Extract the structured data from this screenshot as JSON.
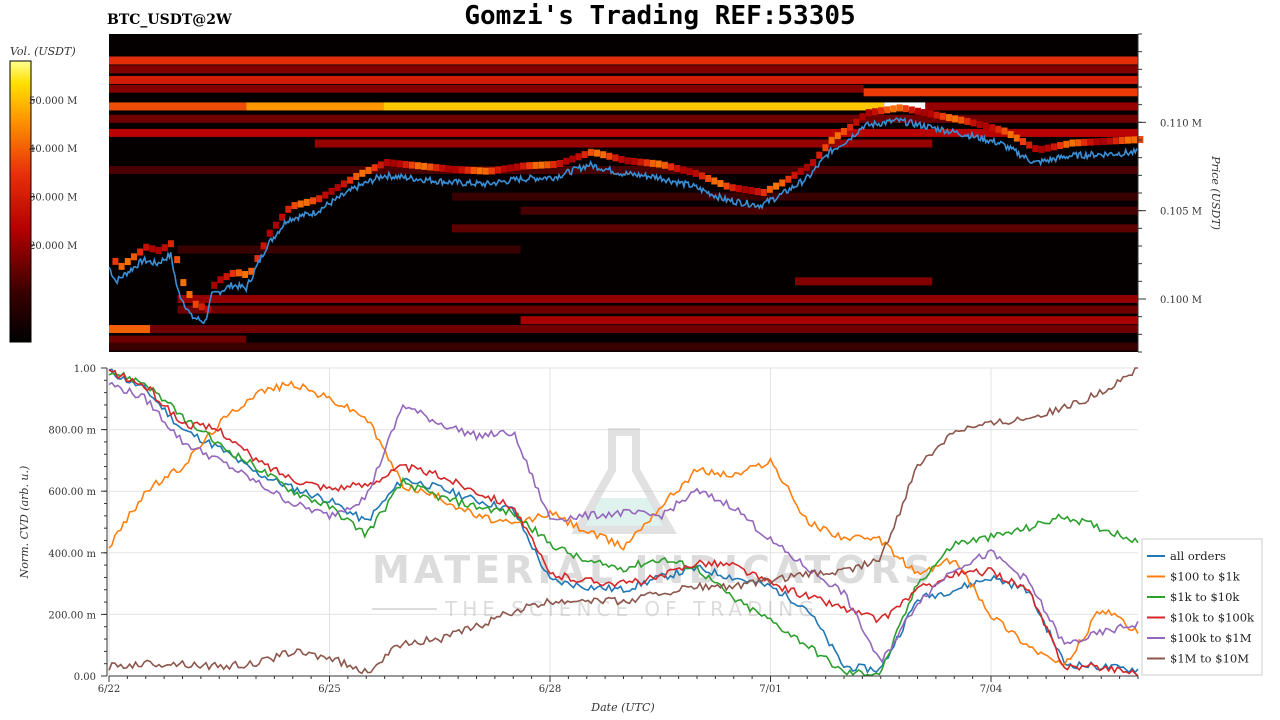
{
  "header": {
    "title": "Gomzi's Trading REF:53305",
    "ticker": "BTC_USDT@2W"
  },
  "colorbar": {
    "label": "Vol. (USDT)",
    "ticks": [
      "50.000 M",
      "40.000 M",
      "30.000 M",
      "20.000 M"
    ]
  },
  "watermark": {
    "line1": "MATERIAL INDICATORS",
    "line2": "THE SCIENCE OF TRADING"
  },
  "chart_data": [
    {
      "type": "heatmap",
      "title": "BTC_USDT@2W",
      "ylabel": "Price (USDT)",
      "ytick_labels": [
        "0.110 M",
        "0.105 M",
        "0.100 M"
      ],
      "price_ticks": [
        110000,
        105000,
        100000
      ],
      "ylim": [
        97000,
        115000
      ],
      "colorbar_ticks": [
        50,
        40,
        30,
        20
      ],
      "colorbar_max": 58,
      "price_series": {
        "name": "price",
        "t": [
          0,
          0.1,
          0.5,
          0.7,
          0.9,
          1.0,
          1.2,
          1.4,
          1.5,
          1.8,
          2.0,
          2.3,
          2.6,
          3.0,
          3.3,
          3.6,
          4.0,
          4.5,
          5.0,
          5.5,
          6.0,
          6.5,
          7.0,
          7.5,
          8.0,
          8.5,
          9.0,
          9.5,
          9.8,
          10.2,
          10.5,
          10.8,
          11.0,
          11.5,
          12.0,
          12.5,
          13.0,
          13.5,
          14.0,
          14.5,
          15.0
        ],
        "price": [
          101800,
          101000,
          102200,
          102000,
          102500,
          100500,
          99000,
          98700,
          100200,
          100800,
          100600,
          103000,
          104500,
          104900,
          105600,
          106300,
          107000,
          106800,
          106600,
          106500,
          106800,
          106900,
          107600,
          107100,
          106900,
          106400,
          105600,
          105300,
          105900,
          106900,
          108300,
          109100,
          109800,
          110100,
          109700,
          109300,
          108800,
          107700,
          108100,
          108200,
          108300
        ]
      },
      "level_rows": [
        {
          "price": 113500,
          "start": 0,
          "end": 15,
          "intensity": 34
        },
        {
          "price": 113000,
          "start": 0,
          "end": 15,
          "intensity": 18
        },
        {
          "price": 112400,
          "start": 0,
          "end": 15,
          "intensity": 30
        },
        {
          "price": 111900,
          "start": 0,
          "end": 11,
          "intensity": 18
        },
        {
          "price": 111700,
          "start": 11,
          "end": 15,
          "intensity": 36
        },
        {
          "price": 110900,
          "start": 0,
          "end": 2,
          "intensity": 38
        },
        {
          "price": 110900,
          "start": 2,
          "end": 4,
          "intensity": 46
        },
        {
          "price": 110900,
          "start": 4,
          "end": 11.3,
          "intensity": 51
        },
        {
          "price": 110900,
          "start": 11.3,
          "end": 11.9,
          "intensity": 58
        },
        {
          "price": 110900,
          "start": 11.9,
          "end": 15,
          "intensity": 20
        },
        {
          "price": 110200,
          "start": 0,
          "end": 15,
          "intensity": 16
        },
        {
          "price": 109400,
          "start": 0,
          "end": 15,
          "intensity": 24
        },
        {
          "price": 108800,
          "start": 3,
          "end": 12,
          "intensity": 20
        },
        {
          "price": 107300,
          "start": 0,
          "end": 15,
          "intensity": 12
        },
        {
          "price": 105800,
          "start": 5,
          "end": 15,
          "intensity": 10
        },
        {
          "price": 105000,
          "start": 6,
          "end": 15,
          "intensity": 12
        },
        {
          "price": 104000,
          "start": 5,
          "end": 15,
          "intensity": 14
        },
        {
          "price": 102800,
          "start": 1,
          "end": 6,
          "intensity": 10
        },
        {
          "price": 101000,
          "start": 10,
          "end": 12,
          "intensity": 18
        },
        {
          "price": 100000,
          "start": 1,
          "end": 15,
          "intensity": 20
        },
        {
          "price": 99400,
          "start": 1,
          "end": 15,
          "intensity": 16
        },
        {
          "price": 98800,
          "start": 6,
          "end": 15,
          "intensity": 22
        },
        {
          "price": 98300,
          "start": 0,
          "end": 0.6,
          "intensity": 40
        },
        {
          "price": 98300,
          "start": 0.6,
          "end": 15,
          "intensity": 16
        },
        {
          "price": 97700,
          "start": 0,
          "end": 2,
          "intensity": 16
        },
        {
          "price": 97300,
          "start": 0,
          "end": 15,
          "intensity": 10
        }
      ]
    },
    {
      "type": "line",
      "xlabel": "Date (UTC)",
      "ylabel": "Norm. CVD (arb. u.)",
      "x_ticks": [
        "6/22",
        "6/25",
        "6/28",
        "7/01",
        "7/04"
      ],
      "x_tick_positions": [
        0,
        3,
        6,
        9,
        12
      ],
      "y_ticks": [
        "0.00",
        "200.00 m",
        "400.00 m",
        "600.00 m",
        "800.00 m",
        "1.00"
      ],
      "y_tick_values": [
        0,
        0.2,
        0.4,
        0.6,
        0.8,
        1.0
      ],
      "xlim": [
        0,
        14
      ],
      "ylim": [
        0,
        1
      ],
      "x": [
        0,
        0.5,
        1,
        1.5,
        2,
        2.5,
        3,
        3.5,
        4,
        4.5,
        5,
        5.5,
        6,
        6.5,
        7,
        7.5,
        8,
        8.5,
        9,
        9.5,
        10,
        10.5,
        11,
        11.5,
        12,
        12.5,
        13,
        13.5,
        14
      ],
      "series": [
        {
          "name": "all orders",
          "color": "#1f77b4",
          "values": [
            0.99,
            0.93,
            0.8,
            0.74,
            0.66,
            0.61,
            0.57,
            0.5,
            0.64,
            0.61,
            0.57,
            0.54,
            0.31,
            0.29,
            0.28,
            0.32,
            0.35,
            0.32,
            0.29,
            0.22,
            0.03,
            0.02,
            0.25,
            0.28,
            0.32,
            0.28,
            0.04,
            0.03,
            0.02
          ]
        },
        {
          "name": "$100 to $1k",
          "color": "#ff7f0e",
          "values": [
            0.42,
            0.6,
            0.68,
            0.82,
            0.92,
            0.95,
            0.9,
            0.84,
            0.62,
            0.58,
            0.52,
            0.49,
            0.53,
            0.47,
            0.42,
            0.55,
            0.67,
            0.65,
            0.7,
            0.5,
            0.45,
            0.44,
            0.33,
            0.38,
            0.2,
            0.1,
            0.03,
            0.22,
            0.14
          ]
        },
        {
          "name": "$1k to $10k",
          "color": "#2ca02c",
          "values": [
            0.99,
            0.95,
            0.84,
            0.75,
            0.68,
            0.6,
            0.55,
            0.46,
            0.63,
            0.58,
            0.55,
            0.53,
            0.43,
            0.37,
            0.35,
            0.38,
            0.35,
            0.25,
            0.18,
            0.1,
            0.01,
            0.01,
            0.3,
            0.43,
            0.45,
            0.48,
            0.52,
            0.48,
            0.44
          ]
        },
        {
          "name": "$10k to $100k",
          "color": "#d62728",
          "values": [
            0.99,
            0.94,
            0.82,
            0.8,
            0.7,
            0.64,
            0.61,
            0.62,
            0.68,
            0.65,
            0.6,
            0.55,
            0.33,
            0.31,
            0.3,
            0.32,
            0.37,
            0.36,
            0.3,
            0.26,
            0.22,
            0.18,
            0.28,
            0.33,
            0.34,
            0.28,
            0.03,
            0.03,
            0.01
          ]
        },
        {
          "name": "$100k to $1M",
          "color": "#9467bd",
          "values": [
            0.95,
            0.9,
            0.76,
            0.7,
            0.63,
            0.56,
            0.52,
            0.58,
            0.88,
            0.82,
            0.78,
            0.79,
            0.51,
            0.52,
            0.53,
            0.52,
            0.6,
            0.55,
            0.44,
            0.35,
            0.27,
            0.04,
            0.24,
            0.35,
            0.4,
            0.31,
            0.1,
            0.14,
            0.17
          ]
        },
        {
          "name": "$1M to $10M",
          "color": "#8c564b",
          "values": [
            0.03,
            0.04,
            0.04,
            0.03,
            0.04,
            0.08,
            0.06,
            0.01,
            0.11,
            0.12,
            0.16,
            0.21,
            0.24,
            0.25,
            0.24,
            0.27,
            0.29,
            0.29,
            0.31,
            0.33,
            0.34,
            0.38,
            0.68,
            0.8,
            0.82,
            0.84,
            0.87,
            0.92,
            1.0
          ]
        }
      ],
      "legend": "lower-right",
      "grid": true
    }
  ]
}
